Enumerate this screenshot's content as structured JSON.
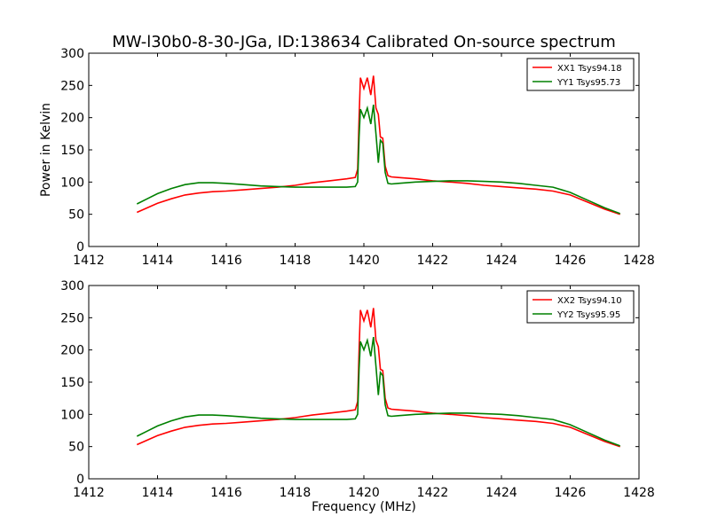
{
  "figure": {
    "title": "MW-l30b0-8-30-JGa, ID:138634 Calibrated On-source spectrum",
    "ylabel": "Power in Kelvin",
    "xlabel": "Frequency (MHz)"
  },
  "chart_data": [
    {
      "type": "line",
      "title": "MW-l30b0-8-30-JGa, ID:138634 Calibrated On-source spectrum",
      "xlabel": "",
      "ylabel": "Power in Kelvin",
      "xlim": [
        1412,
        1428
      ],
      "ylim": [
        0,
        300
      ],
      "xticks": [
        1412,
        1414,
        1416,
        1418,
        1420,
        1422,
        1424,
        1426,
        1428
      ],
      "yticks": [
        0,
        50,
        100,
        150,
        200,
        250,
        300
      ],
      "grid": false,
      "legend": "top-right",
      "series": [
        {
          "name": "XX1 Tsys94.18",
          "color": "#ff0000",
          "x": [
            1413.4,
            1413.7,
            1414.0,
            1414.4,
            1414.8,
            1415.2,
            1415.6,
            1416.0,
            1416.5,
            1417.0,
            1417.5,
            1418.0,
            1418.5,
            1419.0,
            1419.5,
            1419.75,
            1419.82,
            1419.86,
            1419.9,
            1420.0,
            1420.1,
            1420.2,
            1420.28,
            1420.35,
            1420.42,
            1420.48,
            1420.55,
            1420.62,
            1420.7,
            1420.8,
            1421.0,
            1421.5,
            1422.0,
            1422.5,
            1423.0,
            1423.5,
            1424.0,
            1424.5,
            1425.0,
            1425.5,
            1426.0,
            1426.5,
            1427.0,
            1427.45
          ],
          "y": [
            53,
            60,
            67,
            74,
            80,
            83,
            85,
            86,
            88,
            90,
            92,
            95,
            99,
            102,
            105,
            107,
            120,
            200,
            262,
            245,
            262,
            235,
            265,
            215,
            205,
            170,
            168,
            125,
            110,
            108,
            107,
            105,
            102,
            100,
            98,
            95,
            93,
            91,
            89,
            86,
            80,
            69,
            58,
            50
          ]
        },
        {
          "name": "YY1 Tsys95.73",
          "color": "#008000",
          "x": [
            1413.4,
            1413.7,
            1414.0,
            1414.4,
            1414.8,
            1415.2,
            1415.6,
            1416.0,
            1416.5,
            1417.0,
            1417.5,
            1418.0,
            1418.5,
            1419.0,
            1419.5,
            1419.75,
            1419.82,
            1419.86,
            1419.9,
            1420.0,
            1420.1,
            1420.2,
            1420.28,
            1420.35,
            1420.42,
            1420.48,
            1420.55,
            1420.62,
            1420.7,
            1420.8,
            1421.0,
            1421.5,
            1422.0,
            1422.5,
            1423.0,
            1423.5,
            1424.0,
            1424.5,
            1425.0,
            1425.5,
            1426.0,
            1426.5,
            1427.0,
            1427.45
          ],
          "y": [
            66,
            74,
            82,
            90,
            96,
            99,
            99,
            98,
            96,
            94,
            93,
            92,
            92,
            92,
            92,
            93,
            100,
            170,
            213,
            200,
            215,
            190,
            220,
            175,
            130,
            165,
            160,
            115,
            98,
            97,
            98,
            100,
            101,
            102,
            102,
            101,
            100,
            98,
            95,
            92,
            84,
            72,
            60,
            51
          ]
        }
      ]
    },
    {
      "type": "line",
      "title": "",
      "xlabel": "Frequency (MHz)",
      "ylabel": "",
      "xlim": [
        1412,
        1428
      ],
      "ylim": [
        0,
        300
      ],
      "xticks": [
        1412,
        1414,
        1416,
        1418,
        1420,
        1422,
        1424,
        1426,
        1428
      ],
      "yticks": [
        0,
        50,
        100,
        150,
        200,
        250,
        300
      ],
      "grid": false,
      "legend": "top-right",
      "series": [
        {
          "name": "XX2 Tsys94.10",
          "color": "#ff0000",
          "x": [
            1413.4,
            1413.7,
            1414.0,
            1414.4,
            1414.8,
            1415.2,
            1415.6,
            1416.0,
            1416.5,
            1417.0,
            1417.5,
            1418.0,
            1418.5,
            1419.0,
            1419.5,
            1419.75,
            1419.82,
            1419.86,
            1419.9,
            1420.0,
            1420.1,
            1420.2,
            1420.28,
            1420.35,
            1420.42,
            1420.48,
            1420.55,
            1420.62,
            1420.7,
            1420.8,
            1421.0,
            1421.5,
            1422.0,
            1422.5,
            1423.0,
            1423.5,
            1424.0,
            1424.5,
            1425.0,
            1425.5,
            1426.0,
            1426.5,
            1427.0,
            1427.45
          ],
          "y": [
            53,
            60,
            67,
            74,
            80,
            83,
            85,
            86,
            88,
            90,
            92,
            95,
            99,
            102,
            105,
            107,
            120,
            200,
            262,
            245,
            262,
            235,
            265,
            215,
            205,
            170,
            168,
            125,
            110,
            108,
            107,
            105,
            102,
            100,
            98,
            95,
            93,
            91,
            89,
            86,
            80,
            69,
            58,
            50
          ]
        },
        {
          "name": "YY2 Tsys95.95",
          "color": "#008000",
          "x": [
            1413.4,
            1413.7,
            1414.0,
            1414.4,
            1414.8,
            1415.2,
            1415.6,
            1416.0,
            1416.5,
            1417.0,
            1417.5,
            1418.0,
            1418.5,
            1419.0,
            1419.5,
            1419.75,
            1419.82,
            1419.86,
            1419.9,
            1420.0,
            1420.1,
            1420.2,
            1420.28,
            1420.35,
            1420.42,
            1420.48,
            1420.55,
            1420.62,
            1420.7,
            1420.8,
            1421.0,
            1421.5,
            1422.0,
            1422.5,
            1423.0,
            1423.5,
            1424.0,
            1424.5,
            1425.0,
            1425.5,
            1426.0,
            1426.5,
            1427.0,
            1427.45
          ],
          "y": [
            66,
            74,
            82,
            90,
            96,
            99,
            99,
            98,
            96,
            94,
            93,
            92,
            92,
            92,
            92,
            93,
            100,
            170,
            213,
            200,
            215,
            190,
            220,
            175,
            130,
            165,
            160,
            115,
            98,
            97,
            98,
            100,
            101,
            102,
            102,
            101,
            100,
            98,
            95,
            92,
            84,
            72,
            60,
            51
          ]
        }
      ]
    }
  ]
}
